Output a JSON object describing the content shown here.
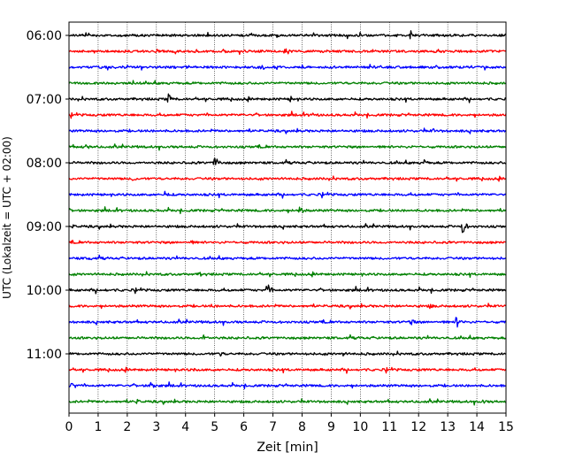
{
  "chart_data": {
    "type": "line",
    "title": "",
    "xlabel": "Zeit  [min]",
    "ylabel": "UTC (Lokalzeit = UTC + 02:00)",
    "xlim": [
      0,
      15
    ],
    "x_ticks": [
      "0",
      "1",
      "2",
      "3",
      "4",
      "5",
      "6",
      "7",
      "8",
      "9",
      "10",
      "11",
      "12",
      "13",
      "14",
      "15"
    ],
    "y_tick_labels": [
      "06:00",
      "07:00",
      "08:00",
      "09:00",
      "10:00",
      "11:00"
    ],
    "trace_interval_minutes": 15,
    "grid": "vertical dotted lines at each minute",
    "colors": [
      "#000000",
      "#ff0000",
      "#0000ff",
      "#008000"
    ],
    "series": [
      {
        "start": "06:00",
        "color": "#000000",
        "events": [
          {
            "x": 0.6,
            "a": 5
          },
          {
            "x": 11.7,
            "a": 7
          }
        ]
      },
      {
        "start": "06:15",
        "color": "#ff0000",
        "events": [
          {
            "x": 7.4,
            "a": 7
          },
          {
            "x": 5.3,
            "a": 3
          }
        ]
      },
      {
        "start": "06:30",
        "color": "#0000ff",
        "events": [
          {
            "x": 6.6,
            "a": 5
          },
          {
            "x": 10.7,
            "a": 4
          }
        ]
      },
      {
        "start": "06:45",
        "color": "#008000",
        "events": [
          {
            "x": 6.6,
            "a": 3
          }
        ]
      },
      {
        "start": "07:00",
        "color": "#000000",
        "events": [
          {
            "x": 3.4,
            "a": 7
          },
          {
            "x": 7.6,
            "a": 4
          }
        ]
      },
      {
        "start": "07:15",
        "color": "#ff0000",
        "events": [
          {
            "x": 8.3,
            "a": 4
          }
        ]
      },
      {
        "start": "07:30",
        "color": "#0000ff",
        "events": [
          {
            "x": 12.5,
            "a": 3
          }
        ]
      },
      {
        "start": "07:45",
        "color": "#008000",
        "events": [
          {
            "x": 0.6,
            "a": 4
          }
        ]
      },
      {
        "start": "08:00",
        "color": "#000000",
        "events": [
          {
            "x": 5.0,
            "a": 10
          },
          {
            "x": 12.2,
            "a": 4
          }
        ]
      },
      {
        "start": "08:15",
        "color": "#ff0000",
        "events": [
          {
            "x": 2.2,
            "a": 4
          }
        ]
      },
      {
        "start": "08:30",
        "color": "#0000ff",
        "events": [
          {
            "x": 3.3,
            "a": 5
          }
        ]
      },
      {
        "start": "08:45",
        "color": "#008000",
        "events": [
          {
            "x": 7.9,
            "a": 7
          }
        ]
      },
      {
        "start": "09:00",
        "color": "#000000",
        "events": [
          {
            "x": 13.5,
            "a": 10
          },
          {
            "x": 0.1,
            "a": 3
          }
        ]
      },
      {
        "start": "09:15",
        "color": "#ff0000",
        "events": [
          {
            "x": 4.2,
            "a": 3
          }
        ]
      },
      {
        "start": "09:30",
        "color": "#0000ff",
        "events": [
          {
            "x": 0.7,
            "a": 3
          }
        ]
      },
      {
        "start": "09:45",
        "color": "#008000",
        "events": [
          {
            "x": 4.5,
            "a": 3
          }
        ]
      },
      {
        "start": "10:00",
        "color": "#000000",
        "events": [
          {
            "x": 6.8,
            "a": 10
          },
          {
            "x": 1.2,
            "a": 3
          }
        ]
      },
      {
        "start": "10:15",
        "color": "#ff0000",
        "events": [
          {
            "x": 4.9,
            "a": 3
          },
          {
            "x": 12.4,
            "a": 4
          }
        ]
      },
      {
        "start": "10:30",
        "color": "#0000ff",
        "events": [
          {
            "x": 11.7,
            "a": 6
          },
          {
            "x": 13.3,
            "a": 9
          }
        ]
      },
      {
        "start": "10:45",
        "color": "#008000",
        "events": [
          {
            "x": 4.6,
            "a": 6
          }
        ]
      },
      {
        "start": "11:00",
        "color": "#000000",
        "events": [
          {
            "x": 5.2,
            "a": 4
          },
          {
            "x": 9.4,
            "a": 4
          },
          {
            "x": 10.1,
            "a": 3
          }
        ]
      },
      {
        "start": "11:15",
        "color": "#ff0000",
        "events": [
          {
            "x": 4.3,
            "a": 3
          }
        ]
      },
      {
        "start": "11:30",
        "color": "#0000ff",
        "events": [
          {
            "x": 0.1,
            "a": 7
          },
          {
            "x": 2.8,
            "a": 8
          }
        ]
      },
      {
        "start": "11:45",
        "color": "#008000",
        "events": [
          {
            "x": 2.3,
            "a": 4
          },
          {
            "x": 14.2,
            "a": 3
          }
        ]
      }
    ]
  }
}
